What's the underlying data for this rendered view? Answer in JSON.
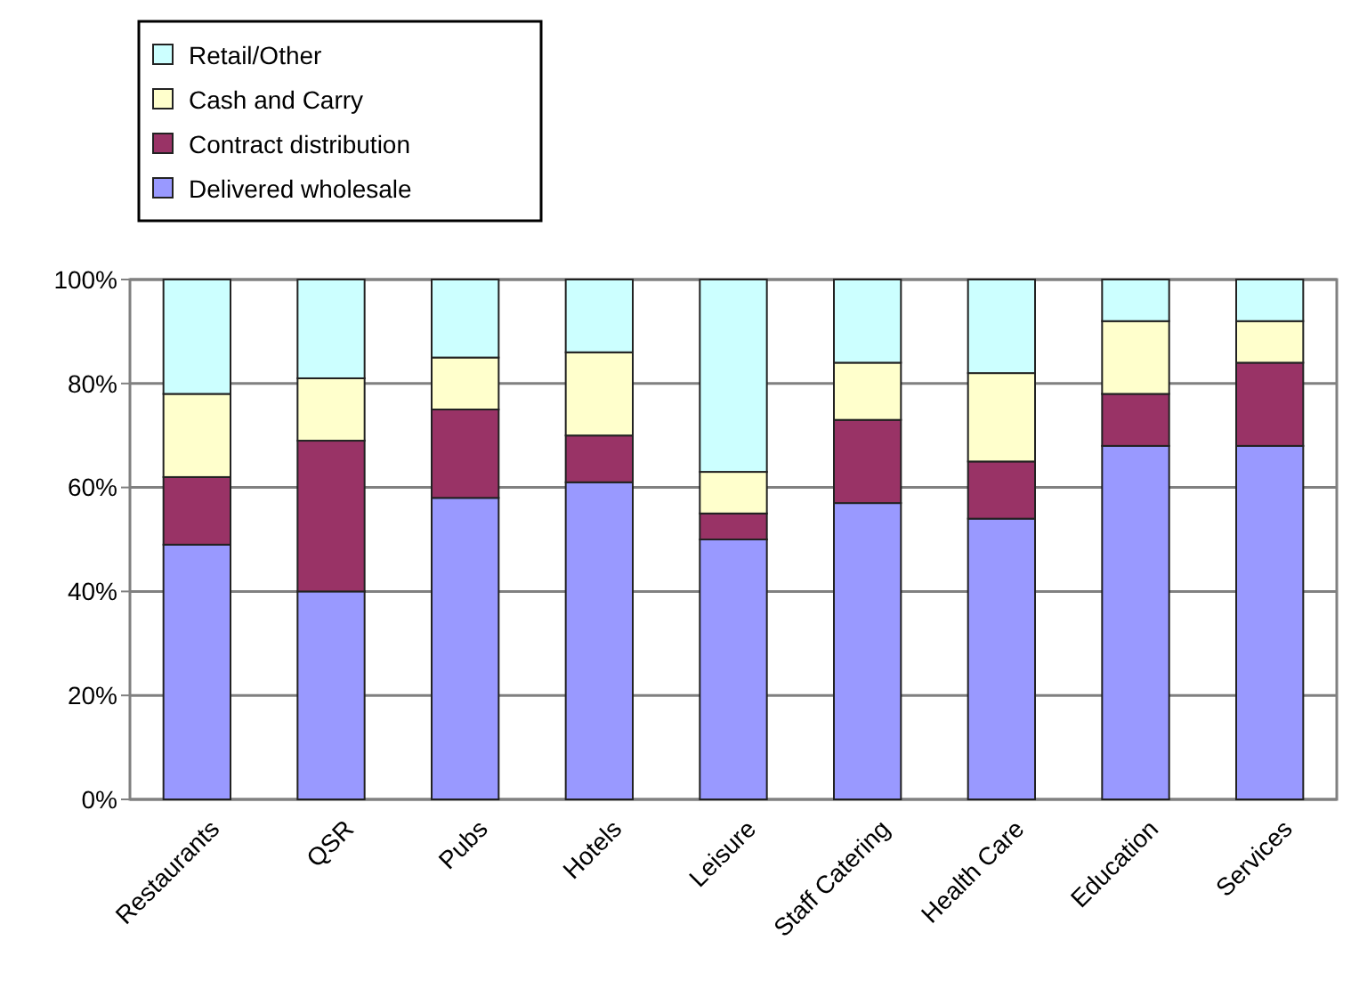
{
  "chart_data": {
    "type": "bar",
    "stacked": true,
    "categories": [
      "Restaurants",
      "QSR",
      "Pubs",
      "Hotels",
      "Leisure",
      "Staff Catering",
      "Health Care",
      "Education",
      "Services"
    ],
    "series": [
      {
        "name": "Delivered wholesale",
        "color": "#9999ff",
        "values": [
          49,
          40,
          58,
          61,
          50,
          57,
          54,
          68,
          68
        ]
      },
      {
        "name": "Contract distribution",
        "color": "#993366",
        "values": [
          13,
          29,
          17,
          9,
          5,
          16,
          11,
          10,
          16
        ]
      },
      {
        "name": "Cash and Carry",
        "color": "#ffffcc",
        "values": [
          16,
          12,
          10,
          16,
          8,
          11,
          17,
          14,
          8
        ]
      },
      {
        "name": "Retail/Other",
        "color": "#ccffff",
        "values": [
          22,
          19,
          15,
          14,
          37,
          16,
          18,
          8,
          8
        ]
      }
    ],
    "ylim": [
      0,
      100
    ],
    "yticks": [
      {
        "value": 0,
        "label": "0%"
      },
      {
        "value": 20,
        "label": "20%"
      },
      {
        "value": 40,
        "label": "40%"
      },
      {
        "value": 60,
        "label": "60%"
      },
      {
        "value": 80,
        "label": "80%"
      },
      {
        "value": 100,
        "label": "100%"
      }
    ],
    "grid": "y",
    "legend": "top left"
  }
}
